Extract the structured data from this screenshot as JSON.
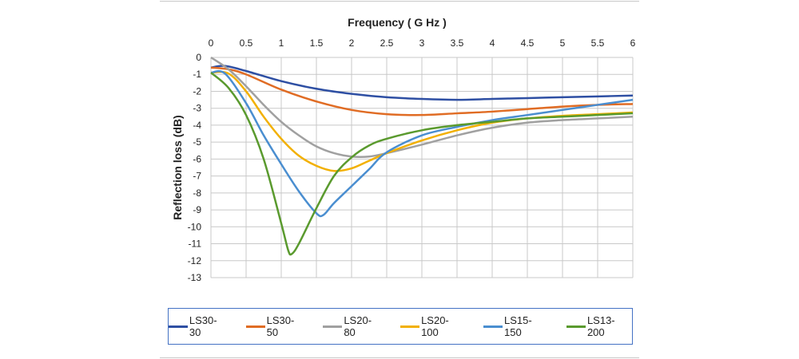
{
  "chart_data": {
    "type": "line",
    "title": "Frequency ( G Hz )",
    "xlabel": "Frequency ( G Hz )",
    "ylabel": "Reflection loss (dB)",
    "xlim": [
      0,
      6
    ],
    "ylim": [
      -13,
      0
    ],
    "x_ticks": [
      "0",
      "0.5",
      "1",
      "1.5",
      "2",
      "2.5",
      "3",
      "3.5",
      "4",
      "4.5",
      "5",
      "5.5",
      "6"
    ],
    "y_ticks": [
      "0",
      "-1",
      "-2",
      "-3",
      "-4",
      "-5",
      "-6",
      "-7",
      "-8",
      "-9",
      "-10",
      "-11",
      "-12",
      "-13"
    ],
    "grid": true,
    "x_axis_position": "top",
    "legend_position": "bottom",
    "series": [
      {
        "name": "LS30-30",
        "color": "#2e4fa3",
        "points": [
          [
            0,
            -0.6
          ],
          [
            0.2,
            -0.5
          ],
          [
            0.5,
            -0.8
          ],
          [
            1,
            -1.4
          ],
          [
            1.5,
            -1.85
          ],
          [
            2,
            -2.15
          ],
          [
            2.5,
            -2.35
          ],
          [
            3,
            -2.45
          ],
          [
            3.5,
            -2.5
          ],
          [
            4,
            -2.45
          ],
          [
            4.5,
            -2.4
          ],
          [
            5,
            -2.35
          ],
          [
            5.5,
            -2.3
          ],
          [
            6,
            -2.25
          ]
        ]
      },
      {
        "name": "LS30-50",
        "color": "#e06c24",
        "points": [
          [
            0,
            -0.6
          ],
          [
            0.25,
            -0.7
          ],
          [
            0.5,
            -1.0
          ],
          [
            1,
            -1.9
          ],
          [
            1.5,
            -2.6
          ],
          [
            2,
            -3.1
          ],
          [
            2.5,
            -3.35
          ],
          [
            3,
            -3.4
          ],
          [
            3.5,
            -3.3
          ],
          [
            4,
            -3.2
          ],
          [
            4.5,
            -3.05
          ],
          [
            5,
            -2.9
          ],
          [
            5.5,
            -2.8
          ],
          [
            6,
            -2.75
          ]
        ]
      },
      {
        "name": "LS20-80",
        "color": "#a0a0a0",
        "points": [
          [
            0,
            0
          ],
          [
            0.25,
            -0.7
          ],
          [
            0.5,
            -1.7
          ],
          [
            0.75,
            -2.8
          ],
          [
            1,
            -3.8
          ],
          [
            1.25,
            -4.6
          ],
          [
            1.5,
            -5.25
          ],
          [
            1.75,
            -5.65
          ],
          [
            2,
            -5.85
          ],
          [
            2.25,
            -5.85
          ],
          [
            2.5,
            -5.65
          ],
          [
            3,
            -5.15
          ],
          [
            3.5,
            -4.6
          ],
          [
            4,
            -4.15
          ],
          [
            4.5,
            -3.85
          ],
          [
            5,
            -3.7
          ],
          [
            5.5,
            -3.6
          ],
          [
            6,
            -3.5
          ]
        ]
      },
      {
        "name": "LS20-100",
        "color": "#f2b000",
        "points": [
          [
            0,
            -0.9
          ],
          [
            0.25,
            -0.95
          ],
          [
            0.5,
            -2.0
          ],
          [
            0.75,
            -3.5
          ],
          [
            1,
            -4.8
          ],
          [
            1.25,
            -5.8
          ],
          [
            1.5,
            -6.4
          ],
          [
            1.75,
            -6.7
          ],
          [
            2,
            -6.55
          ],
          [
            2.25,
            -6.1
          ],
          [
            2.5,
            -5.65
          ],
          [
            3,
            -4.9
          ],
          [
            3.5,
            -4.3
          ],
          [
            4,
            -3.85
          ],
          [
            4.5,
            -3.6
          ],
          [
            5,
            -3.45
          ],
          [
            5.5,
            -3.35
          ],
          [
            6,
            -3.25
          ]
        ]
      },
      {
        "name": "LS15-150",
        "color": "#4a8ed0",
        "points": [
          [
            0,
            -0.9
          ],
          [
            0.2,
            -0.95
          ],
          [
            0.5,
            -2.7
          ],
          [
            0.75,
            -4.6
          ],
          [
            1,
            -6.3
          ],
          [
            1.25,
            -7.9
          ],
          [
            1.5,
            -9.2
          ],
          [
            1.6,
            -9.3
          ],
          [
            1.75,
            -8.6
          ],
          [
            2,
            -7.6
          ],
          [
            2.25,
            -6.6
          ],
          [
            2.5,
            -5.6
          ],
          [
            3,
            -4.6
          ],
          [
            3.5,
            -4.1
          ],
          [
            4,
            -3.7
          ],
          [
            4.5,
            -3.4
          ],
          [
            5,
            -3.1
          ],
          [
            5.5,
            -2.8
          ],
          [
            6,
            -2.5
          ]
        ]
      },
      {
        "name": "LS13-200",
        "color": "#5a9a2e",
        "points": [
          [
            0,
            -0.9
          ],
          [
            0.25,
            -1.8
          ],
          [
            0.5,
            -3.4
          ],
          [
            0.75,
            -6.0
          ],
          [
            1,
            -9.8
          ],
          [
            1.1,
            -11.4
          ],
          [
            1.15,
            -11.6
          ],
          [
            1.25,
            -11.0
          ],
          [
            1.5,
            -8.9
          ],
          [
            1.75,
            -7.0
          ],
          [
            2,
            -5.9
          ],
          [
            2.25,
            -5.2
          ],
          [
            2.5,
            -4.8
          ],
          [
            3,
            -4.3
          ],
          [
            3.5,
            -4.0
          ],
          [
            4,
            -3.8
          ],
          [
            4.5,
            -3.6
          ],
          [
            5,
            -3.5
          ],
          [
            5.5,
            -3.4
          ],
          [
            6,
            -3.3
          ]
        ]
      }
    ]
  }
}
